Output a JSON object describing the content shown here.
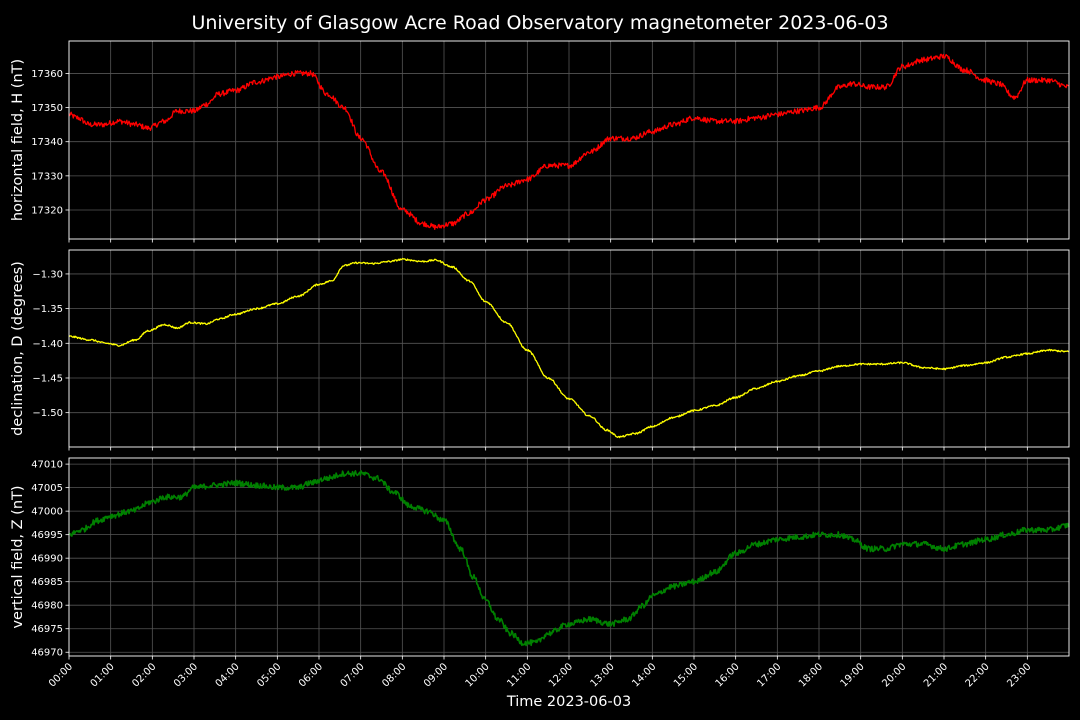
{
  "chart_data": {
    "type": "line",
    "title": "University of Glasgow Acre Road Observatory magnetometer 2023-06-03",
    "xlabel": "Time 2023-06-03",
    "x_unit": "hours",
    "xlim": [
      0,
      24
    ],
    "x_ticks": [
      "00:00",
      "01:00",
      "02:00",
      "03:00",
      "04:00",
      "05:00",
      "06:00",
      "07:00",
      "08:00",
      "09:00",
      "10:00",
      "11:00",
      "12:00",
      "13:00",
      "14:00",
      "15:00",
      "16:00",
      "17:00",
      "18:00",
      "19:00",
      "20:00",
      "21:00",
      "22:00",
      "23:00"
    ],
    "grid": true,
    "panels": [
      {
        "ylabel": "horizontal field, H (nT)",
        "ylim": [
          17311.5,
          17369.5
        ],
        "y_ticks": [
          "17320",
          "17330",
          "17340",
          "17350",
          "17360"
        ],
        "color": "#ff0000",
        "noise": 0.8,
        "x": [
          0,
          0.2,
          0.5,
          0.8,
          1.2,
          1.6,
          1.9,
          2.3,
          2.6,
          3.0,
          3.3,
          3.6,
          4.0,
          4.5,
          5.0,
          5.4,
          5.8,
          6.2,
          6.6,
          7.0,
          7.5,
          8.0,
          8.5,
          8.8,
          9.2,
          9.6,
          10.0,
          10.5,
          11.0,
          11.5,
          12.0,
          12.5,
          13.0,
          13.5,
          14.0,
          14.5,
          15.0,
          15.5,
          16.0,
          16.5,
          17.0,
          17.5,
          18.0,
          18.5,
          18.8,
          19.2,
          19.6,
          20.0,
          20.5,
          21.0,
          21.5,
          22.0,
          22.3,
          22.7,
          23.0,
          23.5,
          24.0
        ],
        "y": [
          17348,
          17347,
          17345,
          17345,
          17346,
          17345,
          17344,
          17346,
          17349,
          17349,
          17351,
          17354,
          17355,
          17357.5,
          17359,
          17360,
          17360,
          17354,
          17350,
          17341,
          17331,
          17320,
          17316,
          17315,
          17316,
          17319,
          17323,
          17327,
          17329,
          17333,
          17333,
          17337,
          17341,
          17341,
          17343,
          17345,
          17347,
          17346,
          17346,
          17347,
          17348,
          17349,
          17350,
          17356,
          17357,
          17356,
          17356,
          17362,
          17364,
          17365,
          17361,
          17358,
          17357,
          17353,
          17358,
          17358,
          17356
        ]
      },
      {
        "ylabel": "declination, D (degrees)",
        "ylim": [
          -1.5495,
          -1.2655
        ],
        "y_ticks": [
          "−1.30",
          "−1.35",
          "−1.40",
          "−1.45",
          "−1.50"
        ],
        "color": "#ffff00",
        "noise": 0.0012,
        "x": [
          0,
          0.5,
          0.9,
          1.2,
          1.6,
          1.9,
          2.3,
          2.6,
          2.9,
          3.3,
          3.6,
          4.0,
          4.5,
          5.0,
          5.5,
          6.0,
          6.3,
          6.6,
          6.9,
          7.3,
          7.7,
          8.0,
          8.5,
          8.8,
          9.2,
          9.6,
          10.0,
          10.5,
          11.0,
          11.5,
          12.0,
          12.5,
          12.9,
          13.2,
          13.6,
          14.0,
          14.5,
          15.0,
          15.5,
          16.0,
          16.5,
          17.0,
          17.5,
          18.0,
          18.5,
          19.0,
          19.5,
          20.0,
          20.5,
          21.0,
          21.5,
          22.0,
          22.5,
          23.0,
          23.5,
          24.0
        ],
        "y": [
          -1.39,
          -1.395,
          -1.4,
          -1.403,
          -1.395,
          -1.382,
          -1.373,
          -1.378,
          -1.37,
          -1.372,
          -1.365,
          -1.358,
          -1.35,
          -1.343,
          -1.332,
          -1.315,
          -1.31,
          -1.288,
          -1.284,
          -1.285,
          -1.282,
          -1.279,
          -1.282,
          -1.28,
          -1.29,
          -1.31,
          -1.34,
          -1.37,
          -1.41,
          -1.45,
          -1.48,
          -1.505,
          -1.525,
          -1.535,
          -1.53,
          -1.52,
          -1.507,
          -1.497,
          -1.49,
          -1.478,
          -1.465,
          -1.455,
          -1.447,
          -1.44,
          -1.433,
          -1.43,
          -1.43,
          -1.428,
          -1.435,
          -1.437,
          -1.432,
          -1.428,
          -1.42,
          -1.415,
          -1.41,
          -1.412
        ]
      },
      {
        "ylabel": "vertical field, Z (nT)",
        "ylim": [
          46969.2,
          47011.3
        ],
        "y_ticks": [
          "46970",
          "46975",
          "46980",
          "46985",
          "46990",
          "46995",
          "47000",
          "47005",
          "47010"
        ],
        "color": "#008000",
        "noise": 0.6,
        "x": [
          0,
          0.3,
          0.7,
          1.0,
          1.5,
          2.0,
          2.3,
          2.7,
          3.0,
          3.5,
          4.0,
          4.5,
          5.0,
          5.5,
          5.8,
          6.2,
          6.6,
          7.0,
          7.4,
          7.8,
          8.2,
          8.6,
          9.0,
          9.4,
          9.7,
          10.0,
          10.3,
          10.6,
          10.9,
          11.2,
          11.5,
          12.0,
          12.5,
          13.0,
          13.4,
          13.8,
          14.0,
          14.5,
          15.0,
          15.5,
          16.0,
          16.5,
          17.0,
          17.5,
          18.0,
          18.5,
          18.8,
          19.2,
          19.6,
          20.0,
          20.5,
          21.0,
          21.5,
          22.0,
          22.5,
          23.0,
          23.5,
          24.0
        ],
        "y": [
          46995,
          46996,
          46998,
          46999,
          47000,
          47002,
          47003,
          47003,
          47005,
          47005.5,
          47006,
          47005.5,
          47005,
          47005,
          47006,
          47007,
          47008,
          47008,
          47007,
          47004,
          47001,
          47000,
          46998,
          46992,
          46986,
          46981,
          46977,
          46974,
          46972,
          46972,
          46974,
          46976,
          46977,
          46976,
          46977,
          46980,
          46982,
          46984,
          46985,
          46987,
          46991,
          46993,
          46994,
          46994.5,
          46995,
          46995,
          46994,
          46992,
          46992,
          46993,
          46993,
          46992,
          46993,
          46994,
          46995,
          46996,
          46996,
          46997
        ]
      }
    ]
  }
}
